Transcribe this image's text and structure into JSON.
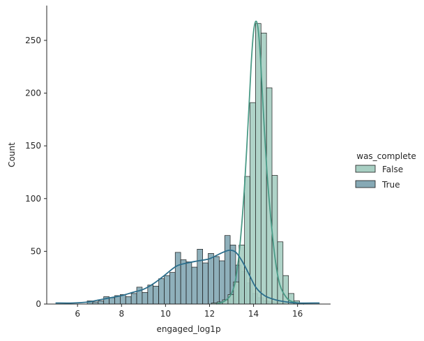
{
  "chart_data": {
    "type": "histogram",
    "title": "",
    "xlabel": "engaged_log1p",
    "ylabel": "Count",
    "xlim": [
      4.6,
      17.5
    ],
    "ylim": [
      0,
      283
    ],
    "xticks": [
      6,
      8,
      10,
      12,
      14,
      16
    ],
    "yticks": [
      0,
      50,
      100,
      150,
      200,
      250
    ],
    "grid": false,
    "legend": {
      "title": "was_complete",
      "position": "right",
      "entries": [
        {
          "label": "False",
          "color": "#a8cfc3"
        },
        {
          "label": "True",
          "color": "#86a9b5"
        }
      ]
    },
    "bin_width": 0.2485,
    "series": [
      {
        "name": "False",
        "color": "#a8cfc3",
        "line_color": "#4a9a86",
        "bins": [
          {
            "x0": 12.09,
            "count": 1
          },
          {
            "x0": 12.34,
            "count": 2
          },
          {
            "x0": 12.59,
            "count": 4
          },
          {
            "x0": 12.84,
            "count": 9
          },
          {
            "x0": 13.09,
            "count": 21
          },
          {
            "x0": 13.34,
            "count": 56
          },
          {
            "x0": 13.59,
            "count": 121
          },
          {
            "x0": 13.84,
            "count": 191
          },
          {
            "x0": 14.09,
            "count": 266
          },
          {
            "x0": 14.34,
            "count": 257
          },
          {
            "x0": 14.59,
            "count": 205
          },
          {
            "x0": 14.84,
            "count": 122
          },
          {
            "x0": 15.09,
            "count": 59
          },
          {
            "x0": 15.34,
            "count": 27
          },
          {
            "x0": 15.59,
            "count": 10
          },
          {
            "x0": 15.84,
            "count": 3
          },
          {
            "x0": 16.09,
            "count": 1
          }
        ],
        "kde": {
          "x": [
            12.3,
            12.7,
            13.0,
            13.2,
            13.4,
            13.6,
            13.8,
            13.9,
            14.0,
            14.1,
            14.2,
            14.3,
            14.4,
            14.6,
            14.8,
            15.0,
            15.2,
            15.5,
            15.8,
            16.3
          ],
          "y": [
            0,
            3,
            10,
            25,
            60,
            115,
            190,
            230,
            258,
            268,
            262,
            238,
            200,
            128,
            78,
            40,
            18,
            6,
            2,
            0
          ]
        }
      },
      {
        "name": "True",
        "color": "#86a9b5",
        "line_color": "#2b6e8c",
        "bins": [
          {
            "x0": 6.44,
            "count": 3
          },
          {
            "x0": 6.69,
            "count": 2
          },
          {
            "x0": 6.94,
            "count": 3
          },
          {
            "x0": 7.19,
            "count": 7
          },
          {
            "x0": 7.44,
            "count": 6
          },
          {
            "x0": 7.69,
            "count": 8
          },
          {
            "x0": 7.94,
            "count": 9
          },
          {
            "x0": 8.19,
            "count": 7
          },
          {
            "x0": 8.44,
            "count": 10
          },
          {
            "x0": 8.69,
            "count": 16
          },
          {
            "x0": 8.94,
            "count": 11
          },
          {
            "x0": 9.19,
            "count": 18
          },
          {
            "x0": 9.44,
            "count": 17
          },
          {
            "x0": 9.69,
            "count": 24
          },
          {
            "x0": 9.94,
            "count": 27
          },
          {
            "x0": 10.19,
            "count": 30
          },
          {
            "x0": 10.44,
            "count": 49
          },
          {
            "x0": 10.69,
            "count": 42
          },
          {
            "x0": 10.94,
            "count": 40
          },
          {
            "x0": 11.19,
            "count": 35
          },
          {
            "x0": 11.44,
            "count": 52
          },
          {
            "x0": 11.69,
            "count": 39
          },
          {
            "x0": 11.94,
            "count": 48
          },
          {
            "x0": 12.19,
            "count": 45
          },
          {
            "x0": 12.44,
            "count": 41
          },
          {
            "x0": 12.69,
            "count": 65
          },
          {
            "x0": 12.94,
            "count": 56
          },
          {
            "x0": 13.19,
            "count": 37
          },
          {
            "x0": 13.44,
            "count": 31
          },
          {
            "x0": 13.69,
            "count": 20
          },
          {
            "x0": 13.94,
            "count": 10
          },
          {
            "x0": 14.19,
            "count": 6
          },
          {
            "x0": 14.44,
            "count": 3
          },
          {
            "x0": 14.69,
            "count": 2
          },
          {
            "x0": 14.94,
            "count": 2
          },
          {
            "x0": 15.19,
            "count": 1
          }
        ],
        "kde": {
          "x": [
            5.0,
            5.8,
            6.5,
            7.0,
            7.5,
            8.0,
            8.5,
            9.0,
            9.5,
            10.0,
            10.5,
            11.0,
            11.5,
            12.0,
            12.5,
            12.9,
            13.2,
            13.5,
            13.8,
            14.1,
            14.5,
            15.0,
            15.5,
            16.0,
            17.0
          ],
          "y": [
            1,
            1,
            2,
            4,
            6,
            8,
            11,
            14,
            20,
            28,
            36,
            39,
            41,
            43,
            48,
            51,
            49,
            40,
            28,
            16,
            8,
            4,
            2,
            1,
            1
          ]
        }
      }
    ]
  }
}
